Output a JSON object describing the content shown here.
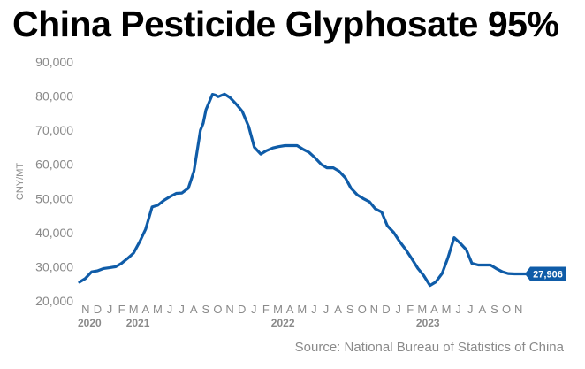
{
  "chart_data": {
    "type": "line",
    "title": "China Pesticide Glyphosate 95%",
    "ylabel": "CNY/MT",
    "source": "Source: National Bureau of Statistics of China",
    "ylim": [
      20000,
      90000
    ],
    "yticks": [
      "20,000",
      "30,000",
      "40,000",
      "50,000",
      "60,000",
      "70,000",
      "80,000",
      "90,000"
    ],
    "ytick_values": [
      20000,
      30000,
      40000,
      50000,
      60000,
      70000,
      80000,
      90000
    ],
    "xlim": [
      "2020-11",
      "2023-12"
    ],
    "month_labels": [
      "N",
      "D",
      "J",
      "F",
      "M",
      "A",
      "M",
      "J",
      "J",
      "A",
      "S",
      "O",
      "N",
      "D",
      "J",
      "F",
      "M",
      "A",
      "M",
      "J",
      "J",
      "A",
      "S",
      "O",
      "N",
      "D",
      "J",
      "F",
      "M",
      "A",
      "M",
      "J",
      "J",
      "A",
      "S",
      "O",
      "N"
    ],
    "year_labels": [
      {
        "label": "2020",
        "at": "2020-11"
      },
      {
        "label": "2021",
        "at": "2021-03"
      },
      {
        "label": "2022",
        "at": "2022-03"
      },
      {
        "label": "2023",
        "at": "2023-03"
      }
    ],
    "grid": false,
    "line_color": "#0f5ca8",
    "end_label": "27,906",
    "series": [
      {
        "x": [
          "2020-11-01",
          "2020-11-15",
          "2020-12-01",
          "2020-12-15",
          "2021-01-01",
          "2021-01-15",
          "2021-02-01",
          "2021-02-15",
          "2021-03-01",
          "2021-03-15",
          "2021-04-01",
          "2021-04-15",
          "2021-05-01",
          "2021-05-15",
          "2021-06-01",
          "2021-06-15",
          "2021-07-01",
          "2021-07-15",
          "2021-08-01",
          "2021-08-15",
          "2021-09-01",
          "2021-09-08",
          "2021-09-15",
          "2021-10-01",
          "2021-10-08",
          "2021-10-15",
          "2021-11-01",
          "2021-11-15",
          "2021-12-01",
          "2021-12-15",
          "2022-01-01",
          "2022-01-15",
          "2022-02-01",
          "2022-02-15",
          "2022-03-01",
          "2022-03-15",
          "2022-04-01",
          "2022-04-15",
          "2022-05-01",
          "2022-05-15",
          "2022-06-01",
          "2022-06-15",
          "2022-07-01",
          "2022-07-15",
          "2022-08-01",
          "2022-08-15",
          "2022-09-01",
          "2022-09-15",
          "2022-10-01",
          "2022-10-15",
          "2022-11-01",
          "2022-11-15",
          "2022-12-01",
          "2022-12-15",
          "2023-01-01",
          "2023-01-15",
          "2023-02-01",
          "2023-02-15",
          "2023-03-01",
          "2023-03-15",
          "2023-04-01",
          "2023-04-15",
          "2023-05-01",
          "2023-05-15",
          "2023-06-01",
          "2023-06-15",
          "2023-07-01",
          "2023-07-15",
          "2023-08-01",
          "2023-08-15",
          "2023-09-01",
          "2023-09-15",
          "2023-10-01",
          "2023-10-15",
          "2023-11-01",
          "2023-11-15",
          "2023-12-01"
        ],
        "y": [
          25500,
          26500,
          28500,
          28800,
          29500,
          29700,
          30000,
          31000,
          32500,
          34000,
          37500,
          41000,
          47500,
          48000,
          49500,
          50500,
          51500,
          51600,
          53000,
          58000,
          70000,
          72000,
          76000,
          80500,
          80300,
          79800,
          80600,
          79500,
          77500,
          75500,
          71000,
          65000,
          63000,
          64000,
          64800,
          65200,
          65500,
          65500,
          65500,
          64500,
          63500,
          62000,
          60000,
          59000,
          59000,
          58000,
          56000,
          53000,
          51000,
          50000,
          49000,
          47000,
          46000,
          42000,
          40000,
          37500,
          35000,
          32500,
          29500,
          27500,
          24500,
          25500,
          28000,
          32500,
          38500,
          37000,
          35000,
          31000,
          30500,
          30500,
          30500,
          29500,
          28500,
          28000,
          27906,
          27906,
          27906
        ]
      }
    ]
  }
}
